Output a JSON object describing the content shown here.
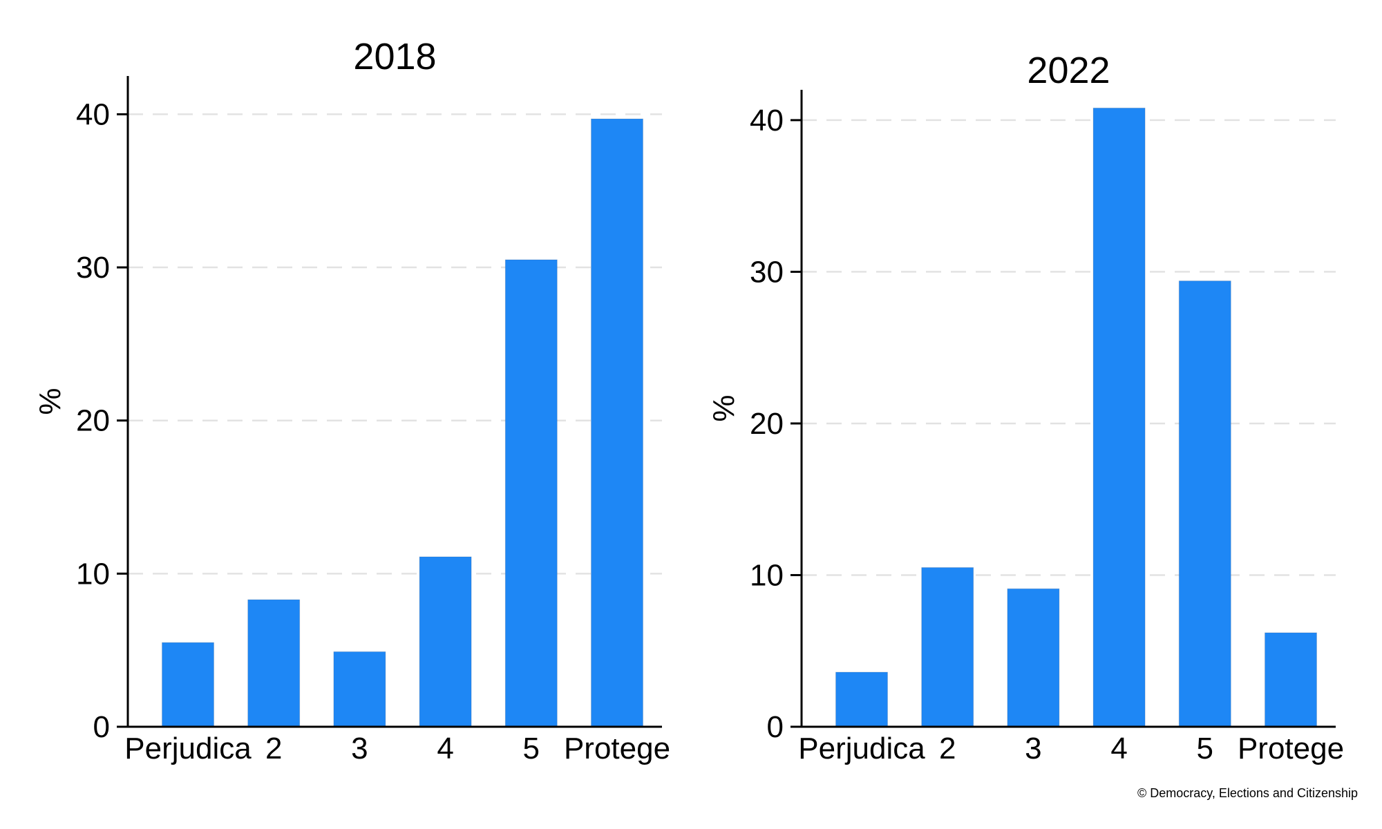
{
  "page": {
    "background": "#ffffff",
    "copyright": "© Democracy, Elections and Citizenship"
  },
  "colors": {
    "bar": "#1e87f5",
    "bar_outline": "#46506433",
    "axis": "#000000",
    "text": "#000000",
    "gridline": "#e2e2e2"
  },
  "chart_data": [
    {
      "type": "bar",
      "title": "2018",
      "ylabel": "%",
      "xlabel": "",
      "categories": [
        "Perjudica",
        "2",
        "3",
        "4",
        "5",
        "Protege"
      ],
      "values": [
        5.5,
        8.3,
        4.9,
        11.1,
        30.5,
        39.7
      ],
      "yticks": [
        0,
        10,
        20,
        30,
        40
      ],
      "ylim": [
        0,
        42.5
      ],
      "grid": "horizontal-dashed",
      "legend": "none"
    },
    {
      "type": "bar",
      "title": "2022",
      "ylabel": "%",
      "xlabel": "",
      "categories": [
        "Perjudica",
        "2",
        "3",
        "4",
        "5",
        "Protege"
      ],
      "values": [
        3.6,
        10.5,
        9.1,
        40.8,
        29.4,
        6.2
      ],
      "yticks": [
        0,
        10,
        20,
        30,
        40
      ],
      "ylim": [
        0,
        42.0
      ],
      "grid": "horizontal-dashed",
      "legend": "none"
    }
  ]
}
